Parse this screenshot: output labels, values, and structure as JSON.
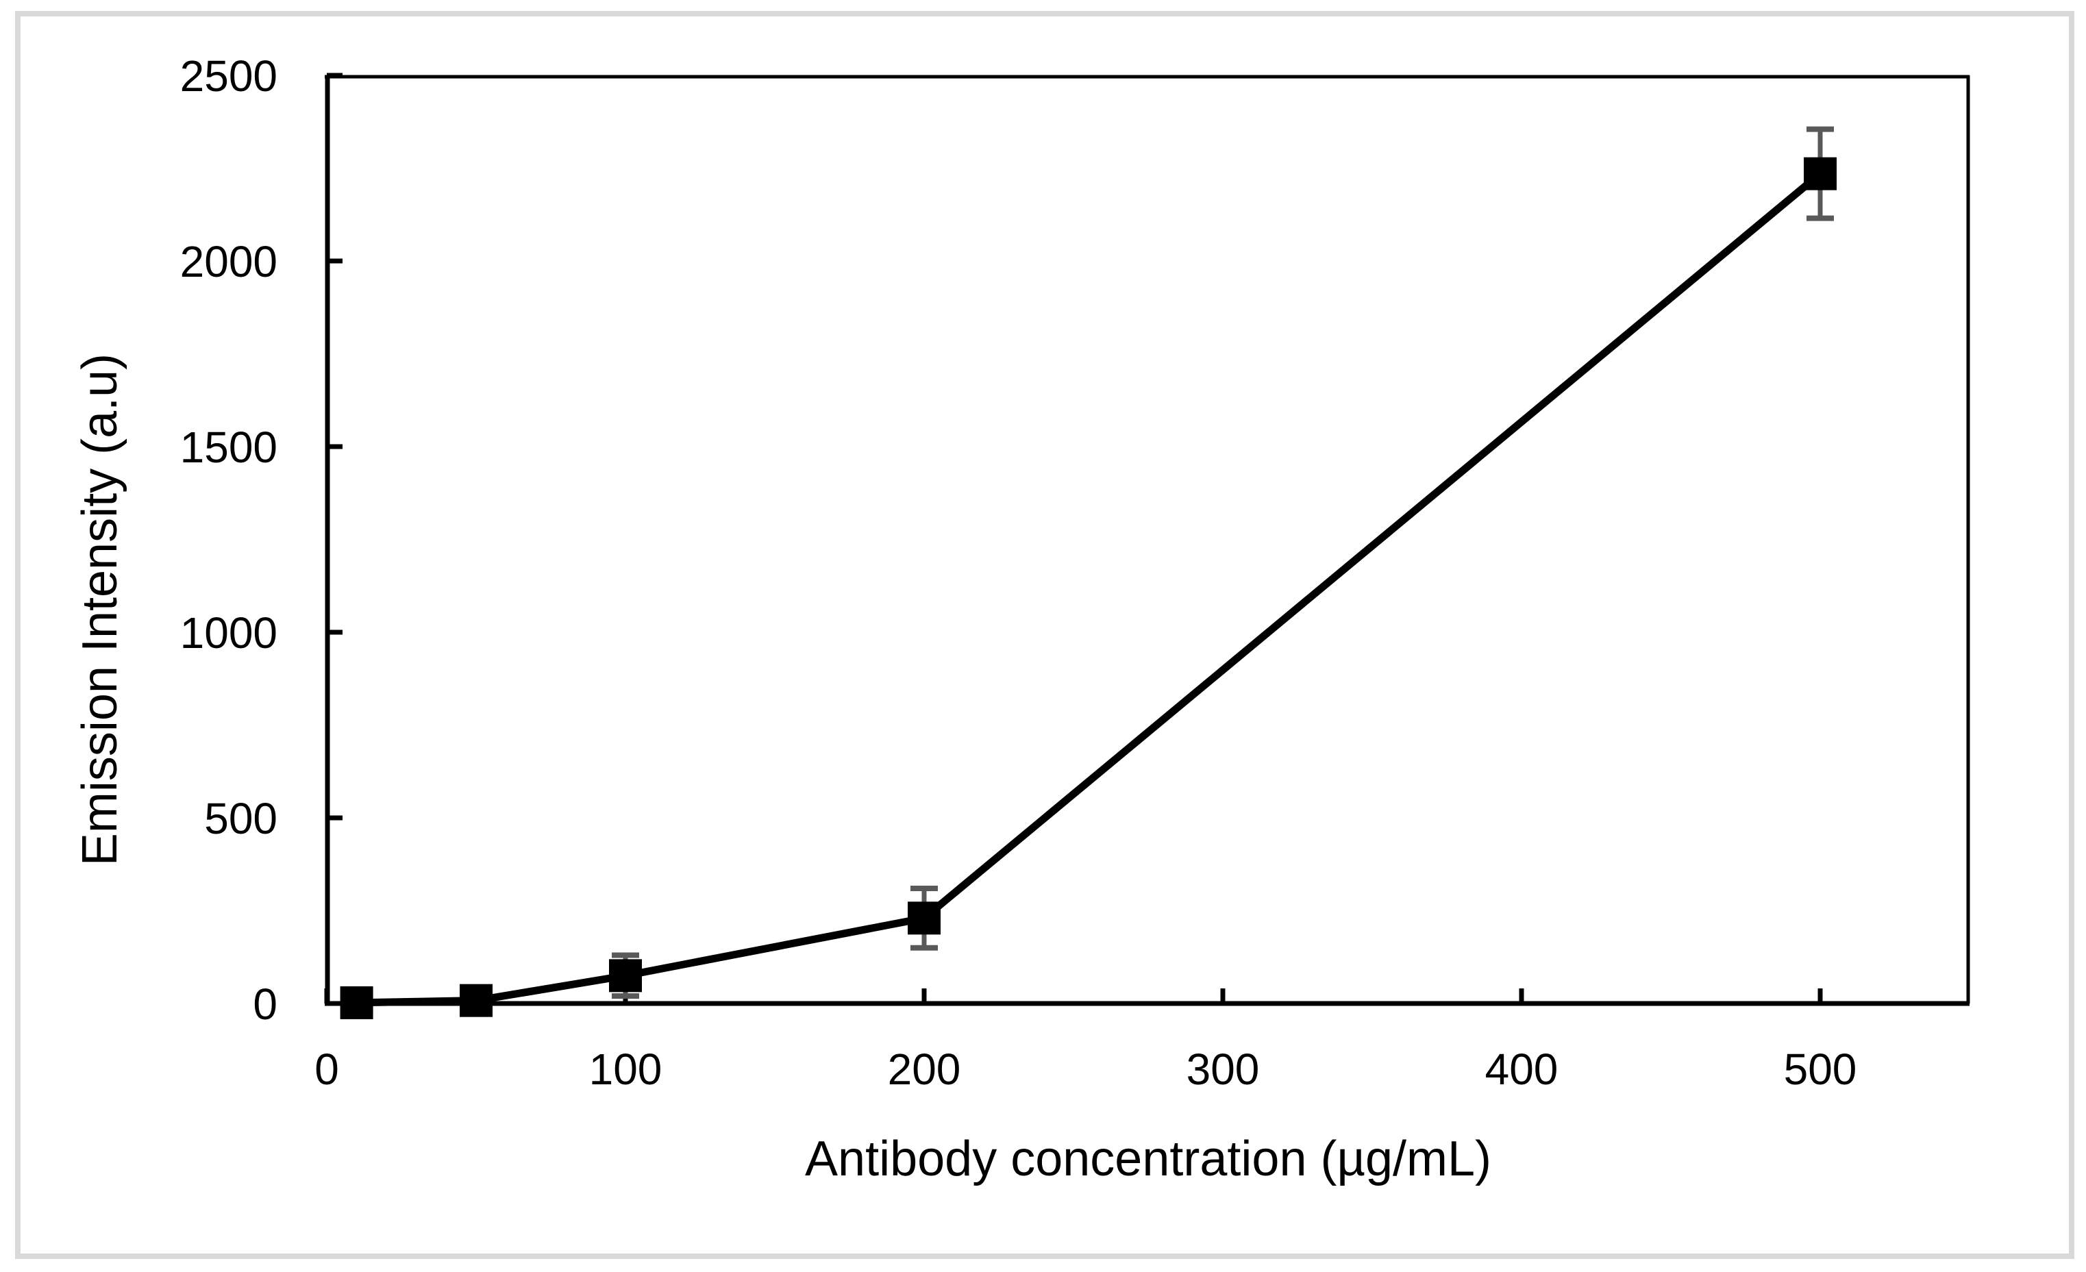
{
  "figure": {
    "background_color": "#ffffff",
    "frame_color": "#d9d9d9",
    "axis_color": "#000000",
    "series_color": "#000000",
    "error_bar_color": "#595959"
  },
  "chart_data": {
    "type": "line",
    "title": "",
    "xlabel": "Antibody concentration (µg/mL)",
    "ylabel": "Emission Intensity (a.u)",
    "x": [
      10,
      50,
      100,
      200,
      500
    ],
    "y": [
      2,
      8,
      75,
      230,
      2235
    ],
    "y_err": [
      0,
      0,
      55,
      80,
      120
    ],
    "xlim": [
      0,
      550
    ],
    "ylim": [
      0,
      2500
    ],
    "x_ticks": [
      0,
      100,
      200,
      300,
      400,
      500
    ],
    "y_ticks": [
      0,
      500,
      1000,
      1500,
      2000,
      2500
    ],
    "grid": false,
    "legend": null,
    "marker": "filled-square",
    "series": [
      {
        "name": "emission-intensity",
        "points": [
          {
            "x": 10,
            "y": 2,
            "y_err": 0
          },
          {
            "x": 50,
            "y": 8,
            "y_err": 0
          },
          {
            "x": 100,
            "y": 75,
            "y_err": 55
          },
          {
            "x": 200,
            "y": 230,
            "y_err": 80
          },
          {
            "x": 500,
            "y": 2235,
            "y_err": 120
          }
        ]
      }
    ]
  }
}
